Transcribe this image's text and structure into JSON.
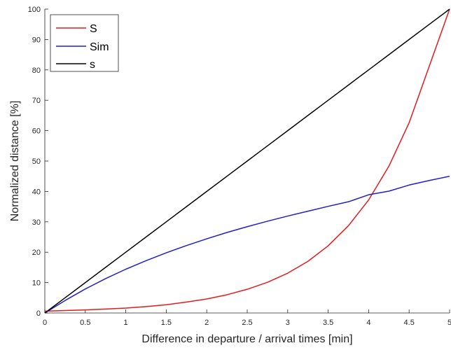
{
  "chart_data": {
    "type": "line",
    "xlabel": "Difference in departure / arrival times [min]",
    "ylabel": "Normalized distance [%]",
    "xlim": [
      0,
      5
    ],
    "ylim": [
      0,
      100
    ],
    "x_ticks": [
      0,
      0.5,
      1,
      1.5,
      2,
      2.5,
      3,
      3.5,
      4,
      4.5,
      5
    ],
    "x_tick_labels": [
      "0",
      "0.5",
      "1",
      "1.5",
      "2",
      "2.5",
      "3",
      "3.5",
      "4",
      "4.5",
      "5"
    ],
    "y_ticks": [
      0,
      10,
      20,
      30,
      40,
      50,
      60,
      70,
      80,
      90,
      100
    ],
    "y_tick_labels": [
      "0",
      "10",
      "20",
      "30",
      "40",
      "50",
      "60",
      "70",
      "80",
      "90",
      "100"
    ],
    "grid": false,
    "legend_position": "top-left",
    "x": [
      0,
      0.25,
      0.5,
      0.75,
      1,
      1.25,
      1.5,
      1.75,
      2,
      2.25,
      2.5,
      2.75,
      3,
      3.25,
      3.5,
      3.75,
      4,
      4.25,
      4.5,
      4.75,
      5
    ],
    "series": [
      {
        "name": "S",
        "color": "#e41a1c",
        "values": [
          0.6,
          0.8,
          1.0,
          1.3,
          1.6,
          2.1,
          2.7,
          3.6,
          4.6,
          6.0,
          7.8,
          10.1,
          13.1,
          17.0,
          22.1,
          28.7,
          37.2,
          48.3,
          62.6,
          81.3,
          100
        ]
      },
      {
        "name": "Sim",
        "color": "#1f1fcc",
        "values": [
          0,
          4.1,
          7.9,
          11.3,
          14.4,
          17.2,
          19.8,
          22.2,
          24.4,
          26.5,
          28.4,
          30.2,
          31.9,
          33.5,
          35.1,
          36.6,
          38.9,
          40.1,
          42.1,
          43.6,
          45.0
        ]
      },
      {
        "name": "s",
        "color": "#000000",
        "values": [
          0,
          5,
          10,
          15,
          20,
          25,
          30,
          35,
          40,
          45,
          50,
          55,
          60,
          65,
          70,
          75,
          80,
          85,
          90,
          95,
          100
        ]
      }
    ]
  }
}
